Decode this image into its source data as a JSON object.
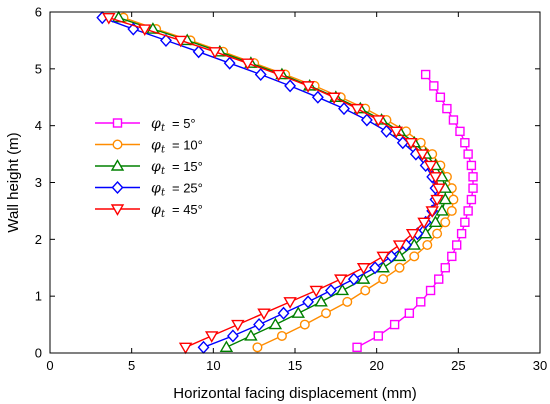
{
  "chart_data": {
    "type": "line",
    "title": "",
    "xlabel": "Horizontal facing displacement (mm)",
    "ylabel": "Wall height (m)",
    "xlim": [
      0,
      30
    ],
    "ylim": [
      0,
      6
    ],
    "xticks": [
      0,
      5,
      10,
      15,
      20,
      25,
      30
    ],
    "yticks": [
      0,
      1,
      2,
      3,
      4,
      5,
      6
    ],
    "grid": false,
    "legend_position": "center-left",
    "series": [
      {
        "name": "φ t = 5°",
        "legend_symbol": "φ",
        "legend_subscript": "t",
        "legend_value": "= 5°",
        "color": "#ff00ff",
        "marker": "square",
        "x": [
          18.8,
          20.1,
          21.1,
          22.0,
          22.7,
          23.3,
          23.8,
          24.2,
          24.6,
          24.9,
          25.2,
          25.4,
          25.6,
          25.8,
          25.9,
          25.9,
          25.8,
          25.6,
          25.4,
          25.1,
          24.7,
          24.3,
          23.9,
          23.5,
          23.0
        ],
        "y": [
          0.1,
          0.3,
          0.5,
          0.7,
          0.9,
          1.1,
          1.3,
          1.5,
          1.7,
          1.9,
          2.1,
          2.3,
          2.5,
          2.7,
          2.9,
          3.1,
          3.3,
          3.5,
          3.7,
          3.9,
          4.1,
          4.3,
          4.5,
          4.7,
          4.9
        ]
      },
      {
        "name": "φ t = 10°",
        "legend_symbol": "φ",
        "legend_subscript": "t",
        "legend_value": "= 10°",
        "color": "#ff8c00",
        "marker": "circle",
        "x": [
          12.7,
          14.2,
          15.6,
          16.9,
          18.2,
          19.3,
          20.4,
          21.4,
          22.3,
          23.1,
          23.7,
          24.2,
          24.6,
          24.7,
          24.6,
          24.3,
          23.9,
          23.4,
          22.7,
          21.8,
          20.6,
          19.3,
          17.8,
          16.2,
          14.4,
          12.5,
          10.6,
          8.6,
          6.5,
          4.5
        ],
        "y": [
          0.1,
          0.3,
          0.5,
          0.7,
          0.9,
          1.1,
          1.3,
          1.5,
          1.7,
          1.9,
          2.1,
          2.3,
          2.5,
          2.7,
          2.9,
          3.1,
          3.3,
          3.5,
          3.7,
          3.9,
          4.1,
          4.3,
          4.5,
          4.7,
          4.9,
          5.1,
          5.3,
          5.5,
          5.7,
          5.9
        ]
      },
      {
        "name": "φ t = 15°",
        "legend_symbol": "φ",
        "legend_subscript": "t",
        "legend_value": "= 15°",
        "color": "#008000",
        "marker": "triangle-up",
        "x": [
          10.8,
          12.3,
          13.8,
          15.2,
          16.6,
          17.9,
          19.2,
          20.4,
          21.4,
          22.3,
          23.0,
          23.6,
          24.0,
          24.2,
          24.2,
          24.0,
          23.6,
          23.0,
          22.3,
          21.4,
          20.3,
          19.0,
          17.5,
          15.9,
          14.2,
          12.3,
          10.4,
          8.4,
          6.3,
          4.2
        ],
        "y": [
          0.1,
          0.3,
          0.5,
          0.7,
          0.9,
          1.1,
          1.3,
          1.5,
          1.7,
          1.9,
          2.1,
          2.3,
          2.5,
          2.7,
          2.9,
          3.1,
          3.3,
          3.5,
          3.7,
          3.9,
          4.1,
          4.3,
          4.5,
          4.7,
          4.9,
          5.1,
          5.3,
          5.5,
          5.7,
          5.9
        ]
      },
      {
        "name": "φ t = 25°",
        "legend_symbol": "φ",
        "legend_subscript": "t",
        "legend_value": "= 25°",
        "color": "#0000ff",
        "marker": "diamond",
        "x": [
          9.4,
          11.2,
          12.8,
          14.3,
          15.8,
          17.2,
          18.6,
          19.9,
          20.9,
          21.8,
          22.5,
          23.0,
          23.4,
          23.6,
          23.6,
          23.4,
          23.0,
          22.4,
          21.6,
          20.6,
          19.4,
          18.0,
          16.4,
          14.7,
          12.9,
          11.0,
          9.1,
          7.1,
          5.1,
          3.2
        ],
        "y": [
          0.1,
          0.3,
          0.5,
          0.7,
          0.9,
          1.1,
          1.3,
          1.5,
          1.7,
          1.9,
          2.1,
          2.3,
          2.5,
          2.7,
          2.9,
          3.1,
          3.3,
          3.5,
          3.7,
          3.9,
          4.1,
          4.3,
          4.5,
          4.7,
          4.9,
          5.1,
          5.3,
          5.5,
          5.7,
          5.9
        ]
      },
      {
        "name": "φ t = 45°",
        "legend_symbol": "φ",
        "legend_subscript": "t",
        "legend_value": "= 45°",
        "color": "#ff0000",
        "marker": "triangle-down",
        "x": [
          8.3,
          9.9,
          11.5,
          13.1,
          14.7,
          16.3,
          17.8,
          19.2,
          20.4,
          21.4,
          22.2,
          22.9,
          23.4,
          23.7,
          23.8,
          23.6,
          23.3,
          22.8,
          22.1,
          21.2,
          20.1,
          18.8,
          17.4,
          15.8,
          14.0,
          12.1,
          10.1,
          8.0,
          5.8,
          3.6
        ],
        "y": [
          0.1,
          0.3,
          0.5,
          0.7,
          0.9,
          1.1,
          1.3,
          1.5,
          1.7,
          1.9,
          2.1,
          2.3,
          2.5,
          2.7,
          2.9,
          3.1,
          3.3,
          3.5,
          3.7,
          3.9,
          4.1,
          4.3,
          4.5,
          4.7,
          4.9,
          5.1,
          5.3,
          5.5,
          5.7,
          5.9
        ]
      }
    ]
  }
}
